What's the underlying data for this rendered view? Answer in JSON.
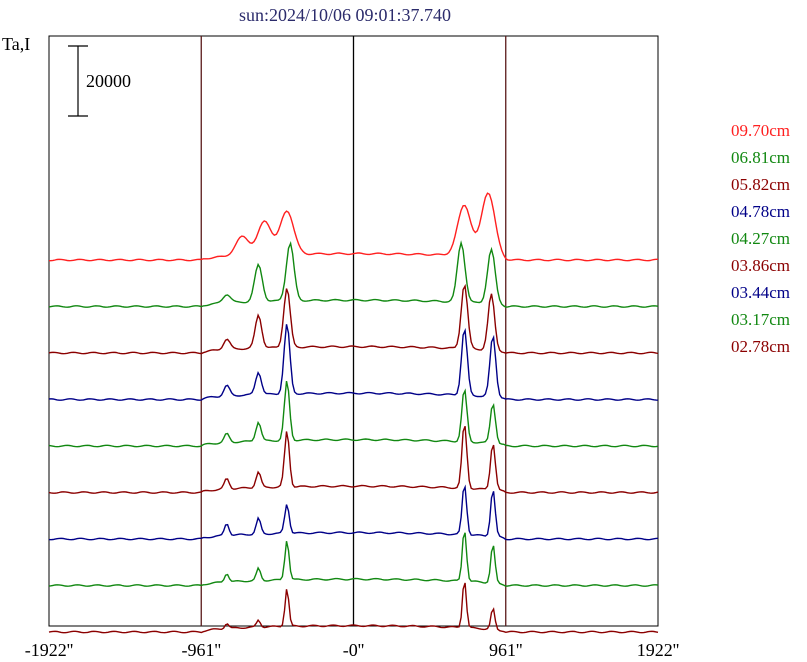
{
  "chart_data": {
    "type": "line",
    "title": "sun:2024/10/06 09:01:37.740",
    "ylabel": "Ta,I",
    "scale_bar_label": "20000",
    "x_ticks": [
      "-1922''",
      "-961''",
      "-0''",
      "961''",
      "1922''"
    ],
    "x_tick_values": [
      -1922,
      -961,
      0,
      961,
      1922
    ],
    "xlim": [
      -1922,
      1922
    ],
    "vertical_lines": [
      -961,
      0,
      961
    ],
    "series": [
      {
        "name": "09.70cm",
        "color": "#ff2020",
        "base": 0,
        "peaks": [
          [
            -700,
            0.55
          ],
          [
            -560,
            0.97
          ],
          [
            -420,
            1.25
          ],
          [
            700,
            1.45
          ],
          [
            850,
            1.85
          ]
        ],
        "width": 42
      },
      {
        "name": "06.81cm",
        "color": "#118811",
        "base": 0,
        "peaks": [
          [
            -800,
            0.25
          ],
          [
            -600,
            1.05
          ],
          [
            -400,
            1.65
          ],
          [
            680,
            1.7
          ],
          [
            870,
            1.55
          ]
        ],
        "width": 24
      },
      {
        "name": "05.82cm",
        "color": "#8b0000",
        "base": 0,
        "peaks": [
          [
            -800,
            0.3
          ],
          [
            -600,
            0.95
          ],
          [
            -420,
            1.7
          ],
          [
            700,
            1.85
          ],
          [
            870,
            1.6
          ]
        ],
        "width": 20
      },
      {
        "name": "04.78cm",
        "color": "#000088",
        "base": 0,
        "peaks": [
          [
            -800,
            0.3
          ],
          [
            -600,
            0.65
          ],
          [
            -420,
            2.0
          ],
          [
            700,
            1.9
          ],
          [
            880,
            1.75
          ]
        ],
        "width": 18
      },
      {
        "name": "04.27cm",
        "color": "#118811",
        "base": 0,
        "peaks": [
          [
            -800,
            0.25
          ],
          [
            -600,
            0.55
          ],
          [
            -420,
            1.7
          ],
          [
            700,
            1.5
          ],
          [
            880,
            1.15
          ]
        ],
        "width": 16
      },
      {
        "name": "03.86cm",
        "color": "#8b0000",
        "base": 0,
        "peaks": [
          [
            -800,
            0.3
          ],
          [
            -600,
            0.45
          ],
          [
            -420,
            1.6
          ],
          [
            700,
            1.85
          ],
          [
            880,
            1.35
          ]
        ],
        "width": 15
      },
      {
        "name": "03.44cm",
        "color": "#000088",
        "base": 0,
        "peaks": [
          [
            -800,
            0.35
          ],
          [
            -600,
            0.45
          ],
          [
            -420,
            0.85
          ],
          [
            700,
            1.45
          ],
          [
            880,
            1.35
          ]
        ],
        "width": 14
      },
      {
        "name": "03.17cm",
        "color": "#118811",
        "base": 0,
        "peaks": [
          [
            -800,
            0.25
          ],
          [
            -600,
            0.35
          ],
          [
            -420,
            1.15
          ],
          [
            700,
            1.5
          ],
          [
            880,
            1.1
          ]
        ],
        "width": 13
      },
      {
        "name": "02.78cm",
        "color": "#8b0000",
        "base": 0,
        "peaks": [
          [
            -800,
            0.15
          ],
          [
            -600,
            0.2
          ],
          [
            -420,
            1.1
          ],
          [
            700,
            1.4
          ],
          [
            880,
            0.6
          ]
        ],
        "width": 12
      }
    ]
  }
}
